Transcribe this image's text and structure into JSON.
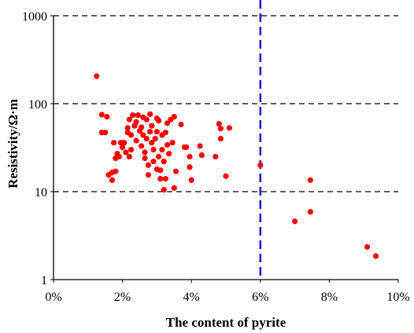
{
  "chart_data": {
    "type": "scatter",
    "title": "",
    "xlabel": "The content of pyrite",
    "ylabel": "Resistivity/Ω·m",
    "x_unit": "%",
    "xlim": [
      0,
      10
    ],
    "ylim": [
      1,
      1000
    ],
    "y_scale": "log",
    "x_ticks": [
      "0%",
      "2%",
      "4%",
      "6%",
      "8%",
      "10%"
    ],
    "y_ticks": [
      "1",
      "10",
      "100",
      "1000"
    ],
    "gridlines": {
      "y": [
        10,
        100,
        1000
      ],
      "style": "dashed",
      "color": "#000000"
    },
    "reference_line": {
      "x": 6,
      "color": "#1f1fd0",
      "style": "dashed"
    },
    "marker_color": "#ff0000",
    "series": [
      {
        "points": [
          [
            1.25,
            205
          ],
          [
            1.4,
            75
          ],
          [
            1.4,
            47
          ],
          [
            1.5,
            47
          ],
          [
            1.55,
            71
          ],
          [
            1.6,
            15.5
          ],
          [
            1.7,
            13.5
          ],
          [
            1.7,
            16.5
          ],
          [
            1.75,
            36
          ],
          [
            1.8,
            17
          ],
          [
            1.8,
            24
          ],
          [
            1.85,
            27
          ],
          [
            1.9,
            25
          ],
          [
            1.95,
            36
          ],
          [
            2.0,
            32
          ],
          [
            2.05,
            36
          ],
          [
            2.1,
            28
          ],
          [
            2.15,
            53
          ],
          [
            2.15,
            47
          ],
          [
            2.2,
            66
          ],
          [
            2.2,
            25
          ],
          [
            2.25,
            30
          ],
          [
            2.25,
            44
          ],
          [
            2.3,
            74
          ],
          [
            2.35,
            56
          ],
          [
            2.4,
            38
          ],
          [
            2.4,
            62
          ],
          [
            2.45,
            74
          ],
          [
            2.5,
            49
          ],
          [
            2.55,
            33
          ],
          [
            2.55,
            54
          ],
          [
            2.6,
            70
          ],
          [
            2.6,
            44
          ],
          [
            2.65,
            24
          ],
          [
            2.65,
            28
          ],
          [
            2.7,
            40
          ],
          [
            2.7,
            66
          ],
          [
            2.75,
            15.5
          ],
          [
            2.75,
            20
          ],
          [
            2.8,
            48
          ],
          [
            2.8,
            76
          ],
          [
            2.85,
            36
          ],
          [
            2.85,
            56
          ],
          [
            2.9,
            30
          ],
          [
            2.9,
            22
          ],
          [
            2.95,
            40
          ],
          [
            3.0,
            68
          ],
          [
            3.0,
            48
          ],
          [
            3.0,
            18
          ],
          [
            3.05,
            25
          ],
          [
            3.05,
            64
          ],
          [
            3.1,
            14
          ],
          [
            3.1,
            17.5
          ],
          [
            3.15,
            30
          ],
          [
            3.15,
            44
          ],
          [
            3.2,
            10.5
          ],
          [
            3.2,
            22
          ],
          [
            3.25,
            47
          ],
          [
            3.25,
            14
          ],
          [
            3.3,
            60
          ],
          [
            3.3,
            34
          ],
          [
            3.35,
            27
          ],
          [
            3.4,
            66
          ],
          [
            3.45,
            36
          ],
          [
            3.5,
            11
          ],
          [
            3.5,
            71
          ],
          [
            3.55,
            17
          ],
          [
            3.7,
            58
          ],
          [
            3.8,
            32
          ],
          [
            3.85,
            32
          ],
          [
            3.95,
            25
          ],
          [
            3.95,
            19
          ],
          [
            4.0,
            13.5
          ],
          [
            4.25,
            33
          ],
          [
            4.3,
            26
          ],
          [
            4.7,
            25
          ],
          [
            4.8,
            59
          ],
          [
            4.85,
            52
          ],
          [
            4.85,
            40
          ],
          [
            5.0,
            15
          ],
          [
            5.1,
            53
          ],
          [
            6.0,
            20
          ],
          [
            7.0,
            4.6
          ],
          [
            7.45,
            13.5
          ],
          [
            7.45,
            5.9
          ],
          [
            9.1,
            2.35
          ],
          [
            9.35,
            1.85
          ]
        ]
      }
    ]
  }
}
